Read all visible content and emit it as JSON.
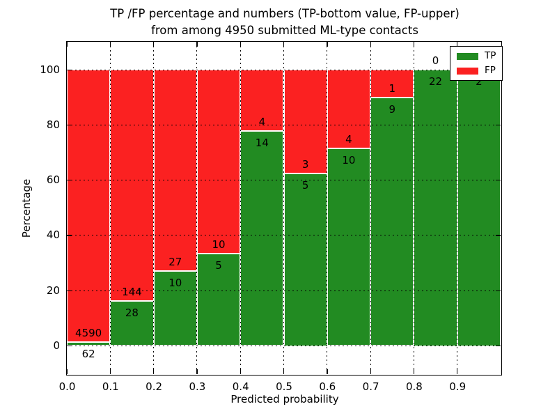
{
  "figure": {
    "title_line1": "TP /FP percentage and numbers (TP-bottom value, FP-upper)",
    "title_line2": "from among 4950 submitted ML-type contacts"
  },
  "chart_data": {
    "type": "bar",
    "stacked": true,
    "title": "TP /FP percentage and numbers (TP-bottom value, FP-upper) from among 4950 submitted ML-type contacts",
    "xlabel": "Predicted probability",
    "ylabel": "Percentage",
    "xlim": [
      0.0,
      1.0
    ],
    "ylim": [
      -11,
      110
    ],
    "grid": true,
    "legend_position": "upper right",
    "xticks": [
      "0.0",
      "0.1",
      "0.2",
      "0.3",
      "0.4",
      "0.5",
      "0.6",
      "0.7",
      "0.8",
      "0.9"
    ],
    "yticks": [
      0,
      20,
      40,
      60,
      80,
      100
    ],
    "bin_width": 0.1,
    "categories": [
      "0.0-0.1",
      "0.1-0.2",
      "0.2-0.3",
      "0.3-0.4",
      "0.4-0.5",
      "0.5-0.6",
      "0.6-0.7",
      "0.7-0.8",
      "0.8-0.9",
      "0.9-1.0"
    ],
    "series": [
      {
        "name": "TP",
        "color": "#228b22",
        "counts": [
          62,
          28,
          10,
          5,
          14,
          5,
          10,
          9,
          22,
          2
        ]
      },
      {
        "name": "FP",
        "color": "#fb2121",
        "counts": [
          4590,
          144,
          27,
          10,
          4,
          3,
          4,
          1,
          0,
          null
        ]
      }
    ],
    "bars": [
      {
        "tp": 62,
        "fp": 4590,
        "tp_pct": 1.33,
        "tp_label": "62",
        "fp_label": "4590"
      },
      {
        "tp": 28,
        "fp": 144,
        "tp_pct": 16.28,
        "tp_label": "28",
        "fp_label": "144"
      },
      {
        "tp": 10,
        "fp": 27,
        "tp_pct": 27.03,
        "tp_label": "10",
        "fp_label": "27"
      },
      {
        "tp": 5,
        "fp": 10,
        "tp_pct": 33.33,
        "tp_label": "5",
        "fp_label": "10"
      },
      {
        "tp": 14,
        "fp": 4,
        "tp_pct": 77.78,
        "tp_label": "14",
        "fp_label": "4"
      },
      {
        "tp": 5,
        "fp": 3,
        "tp_pct": 62.5,
        "tp_label": "5",
        "fp_label": "3"
      },
      {
        "tp": 10,
        "fp": 4,
        "tp_pct": 71.43,
        "tp_label": "10",
        "fp_label": "4"
      },
      {
        "tp": 9,
        "fp": 1,
        "tp_pct": 90.0,
        "tp_label": "9",
        "fp_label": "1"
      },
      {
        "tp": 22,
        "fp": 0,
        "tp_pct": 100.0,
        "tp_label": "22",
        "fp_label": "0"
      },
      {
        "tp": 2,
        "fp": null,
        "tp_pct": 100.0,
        "tp_label": "2",
        "fp_label": null
      }
    ],
    "legend": [
      {
        "label": "TP",
        "color": "#228b22"
      },
      {
        "label": "FP",
        "color": "#fb2121"
      }
    ]
  }
}
